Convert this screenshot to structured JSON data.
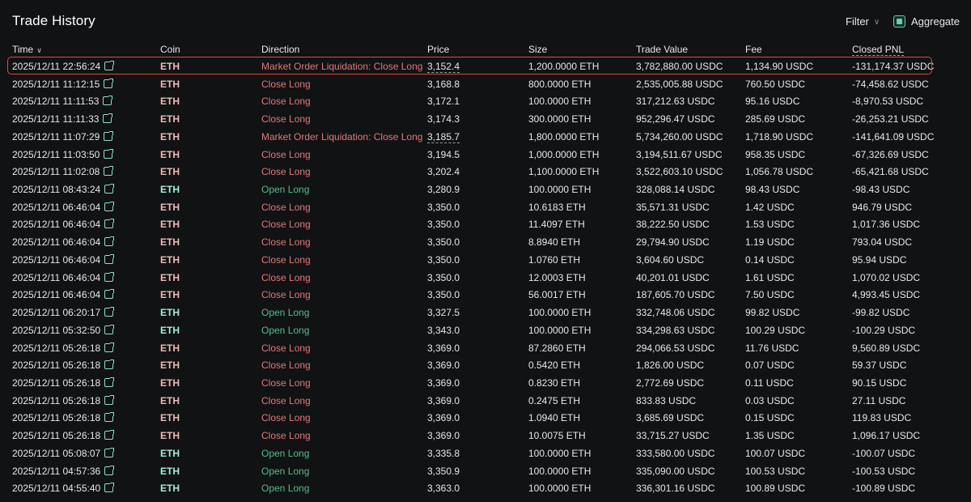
{
  "header": {
    "title": "Trade History",
    "filter_label": "Filter",
    "aggregate_label": "Aggregate",
    "aggregate_checked": true
  },
  "columns": {
    "time": "Time",
    "coin": "Coin",
    "direction": "Direction",
    "price": "Price",
    "size": "Size",
    "trade_value": "Trade Value",
    "fee": "Fee",
    "closed_pnl": "Closed PNL"
  },
  "colors": {
    "close": "#e0787a",
    "open": "#4fbf8a",
    "coin_close": "#f0b9b5",
    "coin_open": "#9ff0d6",
    "highlight": "#e0493a"
  },
  "rows": [
    {
      "time": "2025/12/11 22:56:24",
      "coin": "ETH",
      "direction": "Market Order Liquidation: Close Long",
      "side": "close",
      "price": "3,152.4",
      "price_dashed": true,
      "size": "1,200.0000 ETH",
      "value": "3,782,880.00 USDC",
      "fee": "1,134.90 USDC",
      "pnl": "-131,174.37 USDC"
    },
    {
      "time": "2025/12/11 11:12:15",
      "coin": "ETH",
      "direction": "Close Long",
      "side": "close",
      "price": "3,168.8",
      "size": "800.0000 ETH",
      "value": "2,535,005.88 USDC",
      "fee": "760.50 USDC",
      "pnl": "-74,458.62 USDC"
    },
    {
      "time": "2025/12/11 11:11:53",
      "coin": "ETH",
      "direction": "Close Long",
      "side": "close",
      "price": "3,172.1",
      "size": "100.0000 ETH",
      "value": "317,212.63 USDC",
      "fee": "95.16 USDC",
      "pnl": "-8,970.53 USDC"
    },
    {
      "time": "2025/12/11 11:11:33",
      "coin": "ETH",
      "direction": "Close Long",
      "side": "close",
      "price": "3,174.3",
      "size": "300.0000 ETH",
      "value": "952,296.47 USDC",
      "fee": "285.69 USDC",
      "pnl": "-26,253.21 USDC"
    },
    {
      "time": "2025/12/11 11:07:29",
      "coin": "ETH",
      "direction": "Market Order Liquidation: Close Long",
      "side": "close",
      "price": "3,185.7",
      "price_dashed": true,
      "size": "1,800.0000 ETH",
      "value": "5,734,260.00 USDC",
      "fee": "1,718.90 USDC",
      "pnl": "-141,641.09 USDC"
    },
    {
      "time": "2025/12/11 11:03:50",
      "coin": "ETH",
      "direction": "Close Long",
      "side": "close",
      "price": "3,194.5",
      "size": "1,000.0000 ETH",
      "value": "3,194,511.67 USDC",
      "fee": "958.35 USDC",
      "pnl": "-67,326.69 USDC"
    },
    {
      "time": "2025/12/11 11:02:08",
      "coin": "ETH",
      "direction": "Close Long",
      "side": "close",
      "price": "3,202.4",
      "size": "1,100.0000 ETH",
      "value": "3,522,603.10 USDC",
      "fee": "1,056.78 USDC",
      "pnl": "-65,421.68 USDC"
    },
    {
      "time": "2025/12/11 08:43:24",
      "coin": "ETH",
      "direction": "Open Long",
      "side": "open",
      "price": "3,280.9",
      "size": "100.0000 ETH",
      "value": "328,088.14 USDC",
      "fee": "98.43 USDC",
      "pnl": "-98.43 USDC"
    },
    {
      "time": "2025/12/11 06:46:04",
      "coin": "ETH",
      "direction": "Close Long",
      "side": "close",
      "price": "3,350.0",
      "size": "10.6183 ETH",
      "value": "35,571.31 USDC",
      "fee": "1.42 USDC",
      "pnl": "946.79 USDC"
    },
    {
      "time": "2025/12/11 06:46:04",
      "coin": "ETH",
      "direction": "Close Long",
      "side": "close",
      "price": "3,350.0",
      "size": "11.4097 ETH",
      "value": "38,222.50 USDC",
      "fee": "1.53 USDC",
      "pnl": "1,017.36 USDC"
    },
    {
      "time": "2025/12/11 06:46:04",
      "coin": "ETH",
      "direction": "Close Long",
      "side": "close",
      "price": "3,350.0",
      "size": "8.8940 ETH",
      "value": "29,794.90 USDC",
      "fee": "1.19 USDC",
      "pnl": "793.04 USDC"
    },
    {
      "time": "2025/12/11 06:46:04",
      "coin": "ETH",
      "direction": "Close Long",
      "side": "close",
      "price": "3,350.0",
      "size": "1.0760 ETH",
      "value": "3,604.60 USDC",
      "fee": "0.14 USDC",
      "pnl": "95.94 USDC"
    },
    {
      "time": "2025/12/11 06:46:04",
      "coin": "ETH",
      "direction": "Close Long",
      "side": "close",
      "price": "3,350.0",
      "size": "12.0003 ETH",
      "value": "40,201.01 USDC",
      "fee": "1.61 USDC",
      "pnl": "1,070.02 USDC"
    },
    {
      "time": "2025/12/11 06:46:04",
      "coin": "ETH",
      "direction": "Close Long",
      "side": "close",
      "price": "3,350.0",
      "size": "56.0017 ETH",
      "value": "187,605.70 USDC",
      "fee": "7.50 USDC",
      "pnl": "4,993.45 USDC"
    },
    {
      "time": "2025/12/11 06:20:17",
      "coin": "ETH",
      "direction": "Open Long",
      "side": "open",
      "price": "3,327.5",
      "size": "100.0000 ETH",
      "value": "332,748.06 USDC",
      "fee": "99.82 USDC",
      "pnl": "-99.82 USDC"
    },
    {
      "time": "2025/12/11 05:32:50",
      "coin": "ETH",
      "direction": "Open Long",
      "side": "open",
      "price": "3,343.0",
      "size": "100.0000 ETH",
      "value": "334,298.63 USDC",
      "fee": "100.29 USDC",
      "pnl": "-100.29 USDC"
    },
    {
      "time": "2025/12/11 05:26:18",
      "coin": "ETH",
      "direction": "Close Long",
      "side": "close",
      "price": "3,369.0",
      "size": "87.2860 ETH",
      "value": "294,066.53 USDC",
      "fee": "11.76 USDC",
      "pnl": "9,560.89 USDC"
    },
    {
      "time": "2025/12/11 05:26:18",
      "coin": "ETH",
      "direction": "Close Long",
      "side": "close",
      "price": "3,369.0",
      "size": "0.5420 ETH",
      "value": "1,826.00 USDC",
      "fee": "0.07 USDC",
      "pnl": "59.37 USDC"
    },
    {
      "time": "2025/12/11 05:26:18",
      "coin": "ETH",
      "direction": "Close Long",
      "side": "close",
      "price": "3,369.0",
      "size": "0.8230 ETH",
      "value": "2,772.69 USDC",
      "fee": "0.11 USDC",
      "pnl": "90.15 USDC"
    },
    {
      "time": "2025/12/11 05:26:18",
      "coin": "ETH",
      "direction": "Close Long",
      "side": "close",
      "price": "3,369.0",
      "size": "0.2475 ETH",
      "value": "833.83 USDC",
      "fee": "0.03 USDC",
      "pnl": "27.11 USDC"
    },
    {
      "time": "2025/12/11 05:26:18",
      "coin": "ETH",
      "direction": "Close Long",
      "side": "close",
      "price": "3,369.0",
      "size": "1.0940 ETH",
      "value": "3,685.69 USDC",
      "fee": "0.15 USDC",
      "pnl": "119.83 USDC"
    },
    {
      "time": "2025/12/11 05:26:18",
      "coin": "ETH",
      "direction": "Close Long",
      "side": "close",
      "price": "3,369.0",
      "size": "10.0075 ETH",
      "value": "33,715.27 USDC",
      "fee": "1.35 USDC",
      "pnl": "1,096.17 USDC"
    },
    {
      "time": "2025/12/11 05:08:07",
      "coin": "ETH",
      "direction": "Open Long",
      "side": "open",
      "price": "3,335.8",
      "size": "100.0000 ETH",
      "value": "333,580.00 USDC",
      "fee": "100.07 USDC",
      "pnl": "-100.07 USDC"
    },
    {
      "time": "2025/12/11 04:57:36",
      "coin": "ETH",
      "direction": "Open Long",
      "side": "open",
      "price": "3,350.9",
      "size": "100.0000 ETH",
      "value": "335,090.00 USDC",
      "fee": "100.53 USDC",
      "pnl": "-100.53 USDC"
    },
    {
      "time": "2025/12/11 04:55:40",
      "coin": "ETH",
      "direction": "Open Long",
      "side": "open",
      "price": "3,363.0",
      "size": "100.0000 ETH",
      "value": "336,301.16 USDC",
      "fee": "100.89 USDC",
      "pnl": "-100.89 USDC"
    }
  ]
}
